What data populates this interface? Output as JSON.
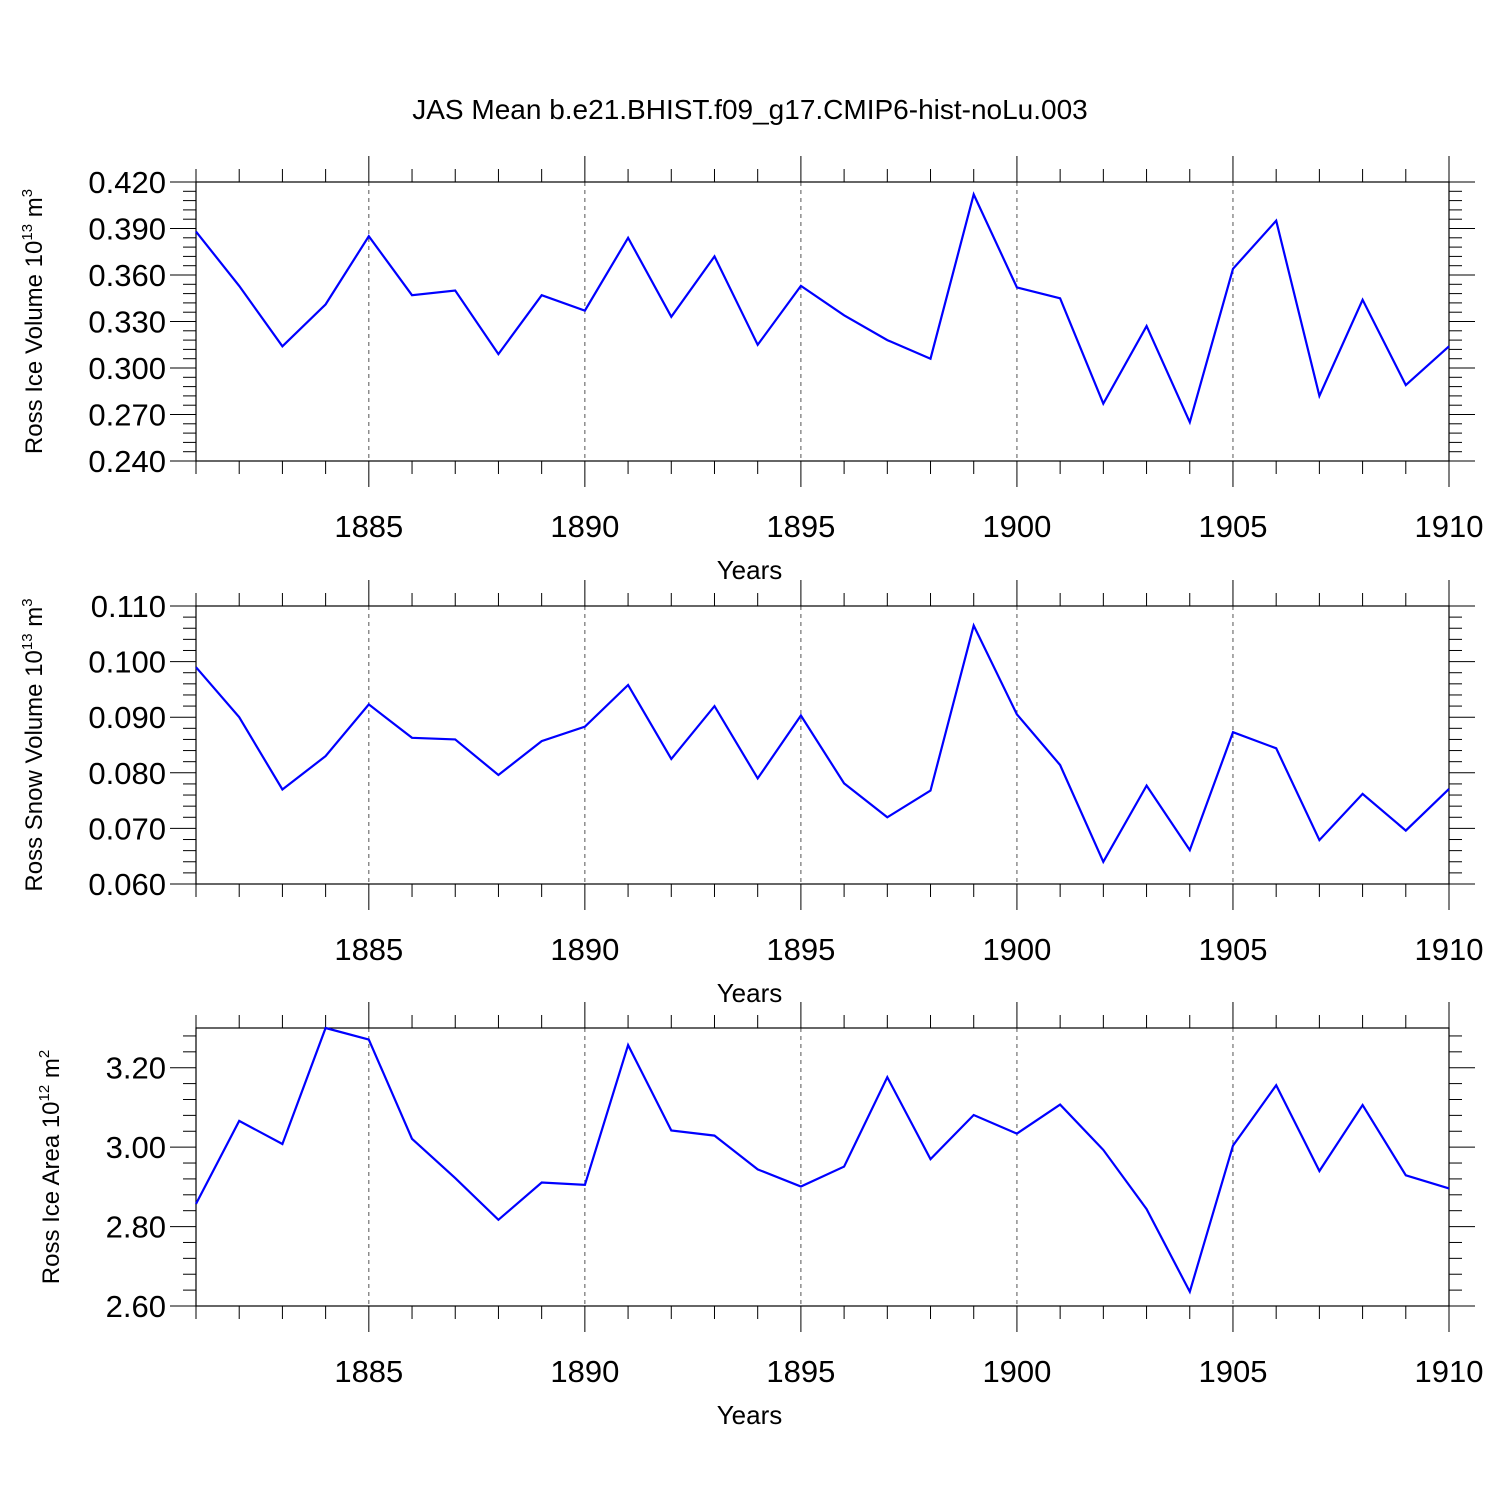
{
  "title": "JAS Mean b.e21.BHIST.f09_g17.CMIP6-hist-noLu.003",
  "colors": {
    "line": "#0000ff",
    "axis": "#000000",
    "grid": "#555555"
  },
  "chart_data": [
    {
      "type": "line",
      "ylabel": {
        "text": "Ross Ice Volume 10",
        "exp": "13",
        "unit": " m",
        "unit_exp": "3"
      },
      "xlabel": "Years",
      "xlim": [
        1881,
        1910
      ],
      "ylim": [
        0.24,
        0.42
      ],
      "x_ticks": [
        1885,
        1890,
        1895,
        1900,
        1905,
        1910
      ],
      "y_ticks": [
        "0.240",
        "0.270",
        "0.300",
        "0.330",
        "0.360",
        "0.390",
        "0.420"
      ],
      "grid": "vertical dashed at major x ticks",
      "x": [
        1881,
        1882,
        1883,
        1884,
        1885,
        1886,
        1887,
        1888,
        1889,
        1890,
        1891,
        1892,
        1893,
        1894,
        1895,
        1896,
        1897,
        1898,
        1899,
        1900,
        1901,
        1902,
        1903,
        1904,
        1905,
        1906,
        1907,
        1908,
        1909,
        1910
      ],
      "values": [
        0.388,
        0.353,
        0.314,
        0.341,
        0.385,
        0.347,
        0.35,
        0.309,
        0.347,
        0.337,
        0.384,
        0.333,
        0.372,
        0.315,
        0.353,
        0.334,
        0.318,
        0.306,
        0.412,
        0.352,
        0.345,
        0.277,
        0.327,
        0.265,
        0.364,
        0.395,
        0.282,
        0.344,
        0.289,
        0.314
      ]
    },
    {
      "type": "line",
      "ylabel": {
        "text": "Ross Snow Volume 10",
        "exp": "13",
        "unit": " m",
        "unit_exp": "3"
      },
      "xlabel": "Years",
      "xlim": [
        1881,
        1910
      ],
      "ylim": [
        0.06,
        0.11
      ],
      "x_ticks": [
        1885,
        1890,
        1895,
        1900,
        1905,
        1910
      ],
      "y_ticks": [
        "0.060",
        "0.070",
        "0.080",
        "0.090",
        "0.100",
        "0.110"
      ],
      "grid": "vertical dashed at major x ticks",
      "x": [
        1881,
        1882,
        1883,
        1884,
        1885,
        1886,
        1887,
        1888,
        1889,
        1890,
        1891,
        1892,
        1893,
        1894,
        1895,
        1896,
        1897,
        1898,
        1899,
        1900,
        1901,
        1902,
        1903,
        1904,
        1905,
        1906,
        1907,
        1908,
        1909,
        1910
      ],
      "values": [
        0.099,
        0.09,
        0.077,
        0.083,
        0.0923,
        0.0863,
        0.086,
        0.0796,
        0.0857,
        0.0883,
        0.0958,
        0.0825,
        0.092,
        0.079,
        0.0903,
        0.0781,
        0.072,
        0.0768,
        0.1065,
        0.0905,
        0.0814,
        0.064,
        0.0777,
        0.0661,
        0.0873,
        0.0844,
        0.0679,
        0.0762,
        0.0696,
        0.0771
      ]
    },
    {
      "type": "line",
      "ylabel": {
        "text": "Ross Ice Area 10",
        "exp": "12",
        "unit": " m",
        "unit_exp": "2"
      },
      "xlabel": "Years",
      "xlim": [
        1881,
        1910
      ],
      "ylim": [
        2.6,
        3.3
      ],
      "x_ticks": [
        1885,
        1890,
        1895,
        1900,
        1905,
        1910
      ],
      "y_ticks": [
        "2.60",
        "2.80",
        "3.00",
        "3.20"
      ],
      "grid": "vertical dashed at major x ticks",
      "x": [
        1881,
        1882,
        1883,
        1884,
        1885,
        1886,
        1887,
        1888,
        1889,
        1890,
        1891,
        1892,
        1893,
        1894,
        1895,
        1896,
        1897,
        1898,
        1899,
        1900,
        1901,
        1902,
        1903,
        1904,
        1905,
        1906,
        1907,
        1908,
        1909,
        1910
      ],
      "values": [
        2.857,
        3.066,
        3.008,
        3.3,
        3.271,
        3.021,
        2.922,
        2.817,
        2.911,
        2.905,
        3.257,
        3.042,
        3.029,
        2.944,
        2.901,
        2.951,
        3.176,
        2.97,
        3.081,
        3.034,
        3.107,
        2.993,
        2.844,
        2.636,
        3.004,
        3.156,
        2.94,
        3.106,
        2.929,
        2.896
      ]
    }
  ]
}
